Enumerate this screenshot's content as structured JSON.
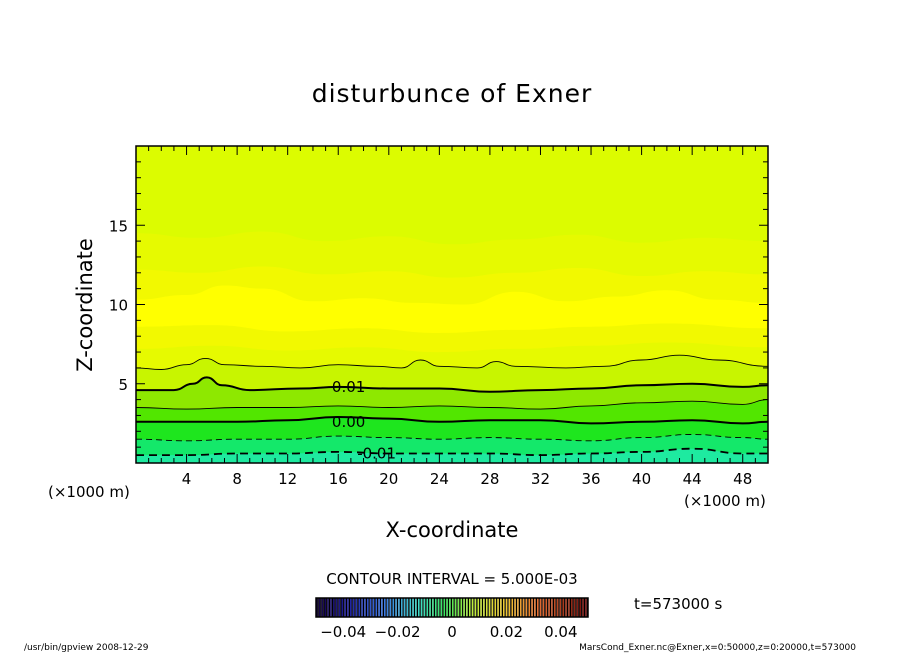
{
  "chart_data": {
    "type": "heatmap",
    "title": "disturbunce of Exner",
    "xlabel": "X-coordinate",
    "ylabel": "Z-coordinate",
    "x_unit_left": "(×1000 m)",
    "x_unit_right": "(×1000 m)",
    "xlim": [
      0,
      50
    ],
    "ylim": [
      0,
      20
    ],
    "x_ticks": [
      4,
      8,
      12,
      16,
      20,
      24,
      28,
      32,
      36,
      40,
      44,
      48
    ],
    "y_ticks": [
      5,
      10,
      15
    ],
    "contour_interval_text": "CONTOUR INTERVAL = 5.000E-03",
    "time_text": "t=573000 s",
    "contour_labels": [
      {
        "text": "0.01",
        "x": 15.5,
        "z": 4.8
      },
      {
        "text": "0.00",
        "x": 15.5,
        "z": 2.6
      },
      {
        "text": "-0.01",
        "x": 17.5,
        "z": 0.6
      }
    ],
    "contours": [
      {
        "level": 0.015,
        "style": "thin",
        "points": [
          [
            0,
            6.0
          ],
          [
            2,
            5.9
          ],
          [
            4,
            6.2
          ],
          [
            5.5,
            6.6
          ],
          [
            7,
            6.2
          ],
          [
            10,
            6.1
          ],
          [
            13,
            6.0
          ],
          [
            16,
            6.2
          ],
          [
            19,
            6.1
          ],
          [
            21,
            6.0
          ],
          [
            22.5,
            6.5
          ],
          [
            24,
            6.1
          ],
          [
            27,
            6.0
          ],
          [
            28.5,
            6.4
          ],
          [
            30,
            6.1
          ],
          [
            34,
            6.0
          ],
          [
            37,
            6.1
          ],
          [
            40,
            6.5
          ],
          [
            43,
            6.8
          ],
          [
            46,
            6.5
          ],
          [
            50,
            6.1
          ]
        ]
      },
      {
        "level": 0.01,
        "style": "thick",
        "points": [
          [
            0,
            4.6
          ],
          [
            3,
            4.6
          ],
          [
            4.5,
            5.0
          ],
          [
            5.6,
            5.4
          ],
          [
            6.8,
            4.9
          ],
          [
            9,
            4.6
          ],
          [
            13,
            4.7
          ],
          [
            16,
            4.8
          ],
          [
            20,
            4.7
          ],
          [
            24,
            4.7
          ],
          [
            28,
            4.5
          ],
          [
            32,
            4.6
          ],
          [
            36,
            4.7
          ],
          [
            40,
            4.9
          ],
          [
            44,
            5.0
          ],
          [
            48,
            4.8
          ],
          [
            50,
            4.9
          ]
        ]
      },
      {
        "level": 0.005,
        "style": "thin",
        "points": [
          [
            0,
            3.5
          ],
          [
            4,
            3.4
          ],
          [
            8,
            3.5
          ],
          [
            12,
            3.5
          ],
          [
            16,
            3.6
          ],
          [
            20,
            3.5
          ],
          [
            24,
            3.6
          ],
          [
            28,
            3.5
          ],
          [
            32,
            3.4
          ],
          [
            36,
            3.6
          ],
          [
            40,
            3.8
          ],
          [
            44,
            3.9
          ],
          [
            48,
            3.7
          ],
          [
            50,
            4.0
          ]
        ]
      },
      {
        "level": 0.0,
        "style": "thick",
        "points": [
          [
            0,
            2.6
          ],
          [
            4,
            2.6
          ],
          [
            8,
            2.6
          ],
          [
            12,
            2.7
          ],
          [
            16,
            2.9
          ],
          [
            20,
            2.8
          ],
          [
            24,
            2.6
          ],
          [
            28,
            2.7
          ],
          [
            32,
            2.7
          ],
          [
            36,
            2.5
          ],
          [
            40,
            2.6
          ],
          [
            44,
            2.7
          ],
          [
            48,
            2.5
          ],
          [
            50,
            2.6
          ]
        ]
      },
      {
        "level": -0.005,
        "style": "dashed",
        "points": [
          [
            0,
            1.5
          ],
          [
            4,
            1.4
          ],
          [
            8,
            1.5
          ],
          [
            12,
            1.5
          ],
          [
            16,
            1.7
          ],
          [
            20,
            1.6
          ],
          [
            24,
            1.5
          ],
          [
            28,
            1.6
          ],
          [
            32,
            1.5
          ],
          [
            36,
            1.4
          ],
          [
            40,
            1.6
          ],
          [
            44,
            1.8
          ],
          [
            48,
            1.6
          ],
          [
            50,
            1.5
          ]
        ]
      },
      {
        "level": -0.01,
        "style": "dashed-thick",
        "points": [
          [
            0,
            0.5
          ],
          [
            4,
            0.5
          ],
          [
            8,
            0.6
          ],
          [
            12,
            0.6
          ],
          [
            16,
            0.7
          ],
          [
            20,
            0.6
          ],
          [
            24,
            0.6
          ],
          [
            28,
            0.6
          ],
          [
            32,
            0.5
          ],
          [
            36,
            0.6
          ],
          [
            40,
            0.7
          ],
          [
            44,
            0.9
          ],
          [
            48,
            0.6
          ],
          [
            50,
            0.6
          ]
        ]
      }
    ],
    "fill_bands": [
      {
        "color": "#dcfc00",
        "points": [
          [
            0,
            20
          ],
          [
            50,
            20
          ]
        ]
      },
      {
        "color": "#e6fa00",
        "points": [
          [
            0,
            14.5
          ],
          [
            5,
            14.2
          ],
          [
            10,
            14.6
          ],
          [
            15,
            14.0
          ],
          [
            20,
            14.3
          ],
          [
            25,
            13.8
          ],
          [
            30,
            14.1
          ],
          [
            35,
            14.4
          ],
          [
            40,
            13.9
          ],
          [
            45,
            14.2
          ],
          [
            50,
            14.0
          ]
        ]
      },
      {
        "color": "#f2f900",
        "points": [
          [
            0,
            12.2
          ],
          [
            5,
            12.0
          ],
          [
            10,
            12.4
          ],
          [
            15,
            11.9
          ],
          [
            20,
            12.1
          ],
          [
            25,
            11.7
          ],
          [
            30,
            12.0
          ],
          [
            35,
            12.3
          ],
          [
            40,
            11.8
          ],
          [
            45,
            12.1
          ],
          [
            50,
            11.9
          ]
        ]
      },
      {
        "color": "#ffff00",
        "points": [
          [
            0,
            10.3
          ],
          [
            4,
            10.6
          ],
          [
            7,
            11.2
          ],
          [
            10,
            11.0
          ],
          [
            14,
            10.2
          ],
          [
            18,
            10.4
          ],
          [
            22,
            10.1
          ],
          [
            26,
            10.0
          ],
          [
            30,
            10.8
          ],
          [
            34,
            10.2
          ],
          [
            38,
            10.5
          ],
          [
            42,
            10.9
          ],
          [
            46,
            10.3
          ],
          [
            50,
            10.1
          ]
        ]
      },
      {
        "color": "#f2f900",
        "points": [
          [
            0,
            8.6
          ],
          [
            6,
            8.7
          ],
          [
            12,
            8.3
          ],
          [
            18,
            8.5
          ],
          [
            24,
            8.2
          ],
          [
            30,
            8.4
          ],
          [
            36,
            8.6
          ],
          [
            42,
            8.8
          ],
          [
            50,
            8.5
          ]
        ]
      },
      {
        "color": "#e6fa00",
        "points": [
          [
            0,
            7.2
          ],
          [
            6,
            7.4
          ],
          [
            12,
            7.1
          ],
          [
            18,
            7.3
          ],
          [
            24,
            7.0
          ],
          [
            30,
            7.2
          ],
          [
            36,
            7.4
          ],
          [
            42,
            7.6
          ],
          [
            50,
            7.3
          ]
        ]
      },
      {
        "color": "#c8f500",
        "points": [
          [
            0,
            6.0
          ],
          [
            2,
            5.9
          ],
          [
            4,
            6.2
          ],
          [
            5.5,
            6.6
          ],
          [
            7,
            6.2
          ],
          [
            10,
            6.1
          ],
          [
            13,
            6.0
          ],
          [
            16,
            6.2
          ],
          [
            19,
            6.1
          ],
          [
            21,
            6.0
          ],
          [
            22.5,
            6.5
          ],
          [
            24,
            6.1
          ],
          [
            27,
            6.0
          ],
          [
            28.5,
            6.4
          ],
          [
            30,
            6.1
          ],
          [
            34,
            6.0
          ],
          [
            37,
            6.1
          ],
          [
            40,
            6.5
          ],
          [
            43,
            6.8
          ],
          [
            46,
            6.5
          ],
          [
            50,
            6.1
          ]
        ]
      },
      {
        "color": "#8ee800",
        "points": [
          [
            0,
            4.6
          ],
          [
            3,
            4.6
          ],
          [
            4.5,
            5.0
          ],
          [
            5.6,
            5.4
          ],
          [
            6.8,
            4.9
          ],
          [
            9,
            4.6
          ],
          [
            13,
            4.7
          ],
          [
            16,
            4.8
          ],
          [
            20,
            4.7
          ],
          [
            24,
            4.7
          ],
          [
            28,
            4.5
          ],
          [
            32,
            4.6
          ],
          [
            36,
            4.7
          ],
          [
            40,
            4.9
          ],
          [
            44,
            5.0
          ],
          [
            48,
            4.8
          ],
          [
            50,
            4.9
          ]
        ]
      },
      {
        "color": "#52e600",
        "points": [
          [
            0,
            3.5
          ],
          [
            4,
            3.4
          ],
          [
            8,
            3.5
          ],
          [
            12,
            3.5
          ],
          [
            16,
            3.6
          ],
          [
            20,
            3.5
          ],
          [
            24,
            3.6
          ],
          [
            28,
            3.5
          ],
          [
            32,
            3.4
          ],
          [
            36,
            3.6
          ],
          [
            40,
            3.8
          ],
          [
            44,
            3.9
          ],
          [
            48,
            3.7
          ],
          [
            50,
            4.0
          ]
        ]
      },
      {
        "color": "#1ee61e",
        "points": [
          [
            0,
            2.6
          ],
          [
            4,
            2.6
          ],
          [
            8,
            2.6
          ],
          [
            12,
            2.7
          ],
          [
            16,
            2.9
          ],
          [
            20,
            2.8
          ],
          [
            24,
            2.6
          ],
          [
            28,
            2.7
          ],
          [
            32,
            2.7
          ],
          [
            36,
            2.5
          ],
          [
            40,
            2.6
          ],
          [
            44,
            2.7
          ],
          [
            48,
            2.5
          ],
          [
            50,
            2.6
          ]
        ]
      },
      {
        "color": "#14e86a",
        "points": [
          [
            0,
            1.5
          ],
          [
            4,
            1.4
          ],
          [
            8,
            1.5
          ],
          [
            12,
            1.5
          ],
          [
            16,
            1.7
          ],
          [
            20,
            1.6
          ],
          [
            24,
            1.5
          ],
          [
            28,
            1.6
          ],
          [
            32,
            1.5
          ],
          [
            36,
            1.4
          ],
          [
            40,
            1.6
          ],
          [
            44,
            1.8
          ],
          [
            48,
            1.6
          ],
          [
            50,
            1.5
          ]
        ]
      },
      {
        "color": "#1eeaa0",
        "points": [
          [
            0,
            0.5
          ],
          [
            4,
            0.5
          ],
          [
            8,
            0.6
          ],
          [
            12,
            0.6
          ],
          [
            16,
            0.7
          ],
          [
            20,
            0.6
          ],
          [
            24,
            0.6
          ],
          [
            28,
            0.6
          ],
          [
            32,
            0.5
          ],
          [
            36,
            0.6
          ],
          [
            40,
            0.7
          ],
          [
            44,
            0.9
          ],
          [
            48,
            0.6
          ],
          [
            50,
            0.6
          ]
        ]
      }
    ],
    "colorbar": {
      "min": -0.05,
      "max": 0.05,
      "tick_values": [
        -0.04,
        -0.02,
        0,
        0.02,
        0.04
      ],
      "tick_labels": [
        "−0.04",
        "−0.02",
        "0",
        "0.02",
        "0.04"
      ]
    }
  },
  "footer": {
    "left": "/usr/bin/gpview   2008-12-29",
    "right": "MarsCond_Exner.nc@Exner,x=0:50000,z=0:20000,t=573000"
  }
}
